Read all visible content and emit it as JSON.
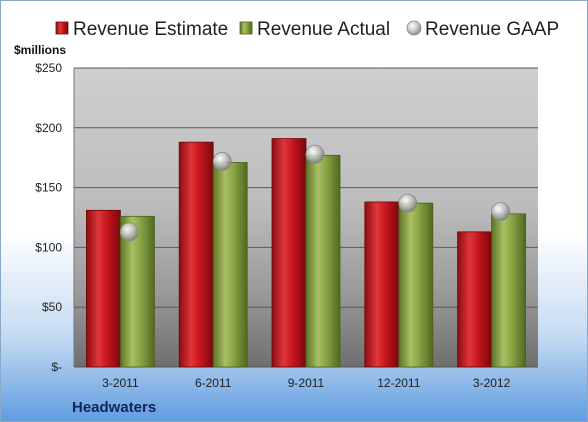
{
  "chart_data": {
    "type": "bar",
    "categories": [
      "3-2011",
      "6-2011",
      "9-2011",
      "12-2011",
      "3-2012"
    ],
    "series": [
      {
        "name": "Revenue Estimate",
        "kind": "bar",
        "color": "#c0141c",
        "values": [
          131,
          188,
          191,
          138,
          113
        ]
      },
      {
        "name": "Revenue Actual",
        "kind": "bar",
        "color": "#7f9a3c",
        "values": [
          126,
          171,
          177,
          137,
          128
        ]
      },
      {
        "name": "Revenue GAAP",
        "kind": "marker",
        "color": "#b8b8b8",
        "values": [
          113,
          172,
          178,
          137,
          130
        ]
      }
    ],
    "ylabel": "$millions",
    "ylim": [
      0,
      250
    ],
    "yticks": [
      {
        "value": 0,
        "label": "$-"
      },
      {
        "value": 50,
        "label": "$50"
      },
      {
        "value": 100,
        "label": "$100"
      },
      {
        "value": 150,
        "label": "$150"
      },
      {
        "value": 200,
        "label": "$200"
      },
      {
        "value": 250,
        "label": "$250"
      }
    ],
    "grid": true,
    "legend": "top"
  },
  "company": "Headwaters"
}
